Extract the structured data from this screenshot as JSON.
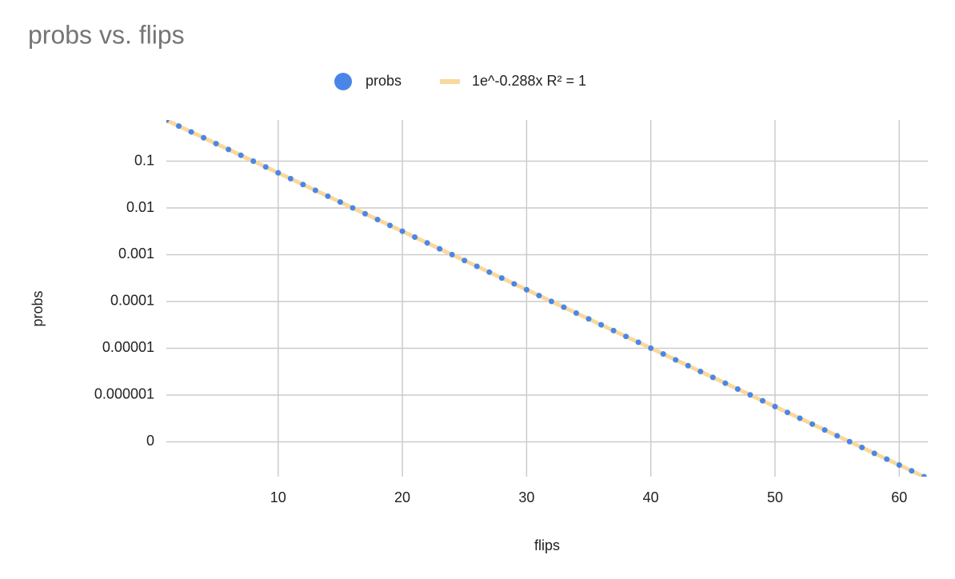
{
  "chart_data": {
    "type": "scatter",
    "title": "probs vs. flips",
    "x_label": "flips",
    "y_label": "probs",
    "log_y": true,
    "grid": true,
    "x": [
      1,
      2,
      3,
      4,
      5,
      6,
      7,
      8,
      9,
      10,
      11,
      12,
      13,
      14,
      15,
      16,
      17,
      18,
      19,
      20,
      21,
      22,
      23,
      24,
      25,
      26,
      27,
      28,
      29,
      30,
      31,
      32,
      33,
      34,
      35,
      36,
      37,
      38,
      39,
      40,
      41,
      42,
      43,
      44,
      45,
      46,
      47,
      48,
      49,
      50,
      51,
      52,
      53,
      54,
      55,
      56,
      57,
      58,
      59,
      60,
      61,
      62
    ],
    "series": [
      {
        "name": "probs",
        "color": "#4a86e8",
        "values": [
          0.75,
          0.5625,
          0.4219,
          0.3164,
          0.2373,
          0.178,
          0.1335,
          0.1001,
          0.07508,
          0.05631,
          0.04224,
          0.03168,
          0.02376,
          0.01782,
          0.01336,
          0.01002,
          0.007517,
          0.005638,
          0.004228,
          0.003171,
          0.002378,
          0.001784,
          0.001338,
          0.001003,
          0.0007525,
          0.0005644,
          0.0004233,
          0.0003175,
          0.0002381,
          0.0001786,
          0.0001339,
          0.0001005,
          7.534e-05,
          5.65e-05,
          4.238e-05,
          3.178e-05,
          2.384e-05,
          1.788e-05,
          1.341e-05,
          1.006e-05,
          7.542e-06,
          5.657e-06,
          4.243e-06,
          3.182e-06,
          2.386e-06,
          1.79e-06,
          1.342e-06,
          1.007e-06,
          7.551e-07,
          5.663e-07,
          4.247e-07,
          3.186e-07,
          2.389e-07,
          1.792e-07,
          1.344e-07,
          1.008e-07,
          7.56e-08,
          5.67e-08,
          4.252e-08,
          3.189e-08,
          2.392e-08,
          1.794e-08
        ]
      }
    ],
    "trendline": {
      "label": "1e^-0.288x R² = 1",
      "color": "#f9d89c"
    },
    "xlim": [
      1,
      62.3
    ],
    "xticks": [
      10,
      20,
      30,
      40,
      50,
      60
    ],
    "ylim": [
      1.8e-08,
      0.76
    ],
    "yticks": [
      0.1,
      0.01,
      0.001,
      0.0001,
      1e-05,
      1e-06,
      {
        "value": 1e-07,
        "label": "0"
      }
    ]
  }
}
